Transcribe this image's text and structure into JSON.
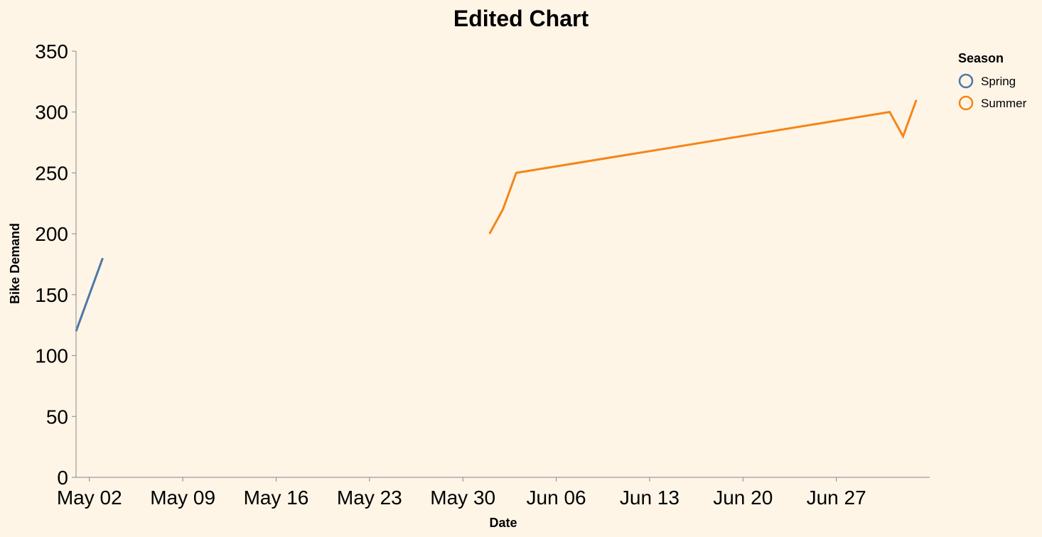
{
  "chart_data": {
    "type": "line",
    "title": "Edited Chart",
    "xlabel": "Date",
    "ylabel": "Bike Demand",
    "x_ticks": [
      "May 02",
      "May 09",
      "May 16",
      "May 23",
      "May 30",
      "Jun 06",
      "Jun 13",
      "Jun 20",
      "Jun 27"
    ],
    "xlim": [
      "2023-05-01",
      "2023-07-04"
    ],
    "y_ticks": [
      0,
      50,
      100,
      150,
      200,
      250,
      300,
      350
    ],
    "ylim": [
      0,
      350
    ],
    "grid": false,
    "legend": {
      "title": "Season",
      "placement": "top-right"
    },
    "series": [
      {
        "name": "Spring",
        "color": "#4c78a8",
        "points": [
          {
            "x": "2023-05-01",
            "y": 120
          },
          {
            "x": "2023-05-03",
            "y": 180
          }
        ]
      },
      {
        "name": "Summer",
        "color": "#f58518",
        "points": [
          {
            "x": "2023-06-01",
            "y": 200
          },
          {
            "x": "2023-06-02",
            "y": 220
          },
          {
            "x": "2023-06-03",
            "y": 250
          },
          {
            "x": "2023-07-01",
            "y": 300
          },
          {
            "x": "2023-07-02",
            "y": 280
          },
          {
            "x": "2023-07-03",
            "y": 310
          }
        ]
      }
    ]
  }
}
